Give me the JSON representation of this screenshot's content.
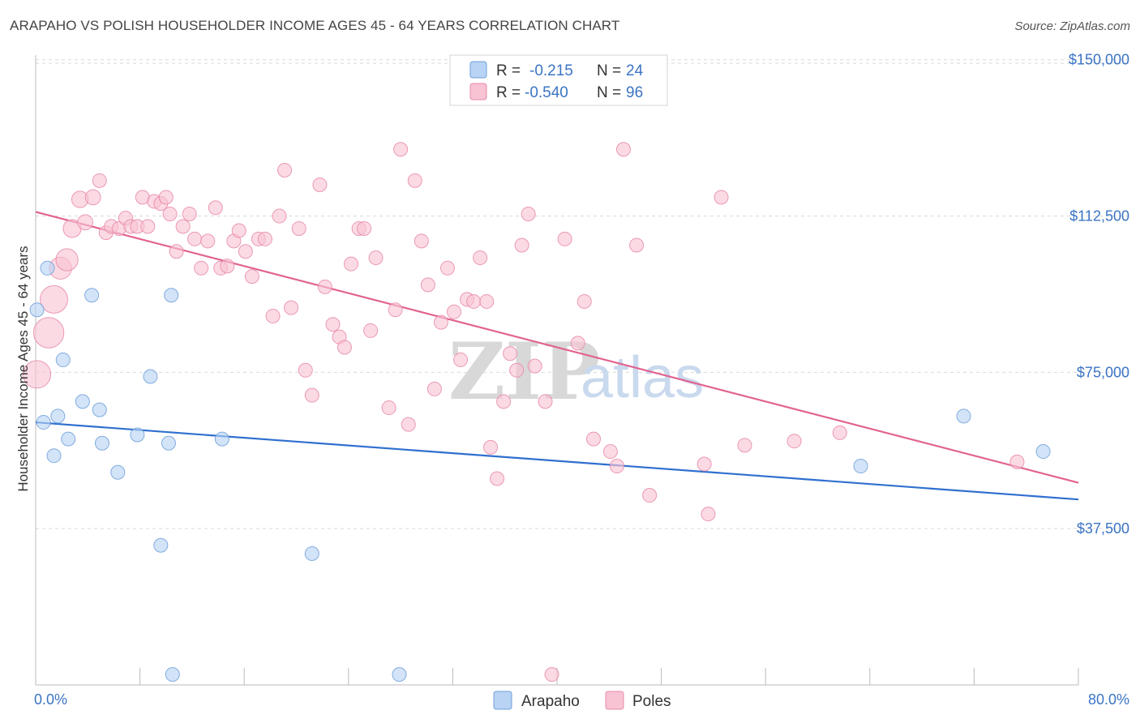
{
  "header": {
    "title": "ARAPAHO VS POLISH HOUSEHOLDER INCOME AGES 45 - 64 YEARS CORRELATION CHART",
    "source": "Source: ZipAtlas.com"
  },
  "colors": {
    "arapaho_fill": "#b8d3f3",
    "arapaho_stroke": "#6f9fdb",
    "arapaho_line": "#2f6fcf",
    "poles_fill": "#f8c3d3",
    "poles_stroke": "#e88aa8",
    "poles_line": "#e2638f",
    "axis_text": "#3b74c4",
    "grid": "#d9d9d9"
  },
  "legend": {
    "rows": [
      {
        "r_label": "R =",
        "r_value": "-0.215",
        "n_label": "N =",
        "n_value": "24"
      },
      {
        "r_label": "R =",
        "r_value": "-0.540",
        "n_label": "N =",
        "n_value": "96"
      }
    ]
  },
  "watermark": {
    "zip": "ZIP",
    "atlas": "atlas"
  },
  "chart_data": {
    "type": "scatter",
    "title": "ARAPAHO VS POLISH HOUSEHOLDER INCOME AGES 45 - 64 YEARS CORRELATION CHART",
    "xlabel": "",
    "ylabel": "Householder Income Ages 45 - 64 years",
    "xlim": [
      0,
      80
    ],
    "ylim": [
      0,
      155000
    ],
    "x_tick_labels": [
      "0.0%",
      "80.0%"
    ],
    "y_ticks": [
      37500,
      75000,
      112500,
      150000
    ],
    "y_tick_labels": [
      "$37,500",
      "$75,000",
      "$112,500",
      "$150,000"
    ],
    "grid": true,
    "series": [
      {
        "name": "Arapaho",
        "r": -0.215,
        "n": 24,
        "trend": {
          "x": [
            0,
            80
          ],
          "y": [
            63000,
            44500
          ]
        },
        "points": [
          {
            "x": 0.1,
            "y": 90000,
            "s": 1
          },
          {
            "x": 0.6,
            "y": 63000,
            "s": 1
          },
          {
            "x": 0.9,
            "y": 100000,
            "s": 1
          },
          {
            "x": 1.4,
            "y": 55000,
            "s": 1
          },
          {
            "x": 1.7,
            "y": 64500,
            "s": 1
          },
          {
            "x": 2.1,
            "y": 78000,
            "s": 1
          },
          {
            "x": 2.5,
            "y": 59000,
            "s": 1
          },
          {
            "x": 3.6,
            "y": 68000,
            "s": 1
          },
          {
            "x": 4.3,
            "y": 93500,
            "s": 1
          },
          {
            "x": 4.9,
            "y": 66000,
            "s": 1
          },
          {
            "x": 5.1,
            "y": 58000,
            "s": 1
          },
          {
            "x": 6.3,
            "y": 51000,
            "s": 1
          },
          {
            "x": 7.8,
            "y": 60000,
            "s": 1
          },
          {
            "x": 8.8,
            "y": 74000,
            "s": 1
          },
          {
            "x": 9.6,
            "y": 33500,
            "s": 1
          },
          {
            "x": 10.2,
            "y": 58000,
            "s": 1
          },
          {
            "x": 10.4,
            "y": 93500,
            "s": 1
          },
          {
            "x": 10.5,
            "y": 2500,
            "s": 1
          },
          {
            "x": 14.3,
            "y": 59000,
            "s": 1
          },
          {
            "x": 21.2,
            "y": 31500,
            "s": 1
          },
          {
            "x": 27.9,
            "y": 2500,
            "s": 1
          },
          {
            "x": 63.3,
            "y": 52500,
            "s": 1
          },
          {
            "x": 71.2,
            "y": 64500,
            "s": 1
          },
          {
            "x": 77.3,
            "y": 56000,
            "s": 1
          }
        ]
      },
      {
        "name": "Poles",
        "r": -0.54,
        "n": 96,
        "trend": {
          "x": [
            0,
            80
          ],
          "y": [
            113500,
            48500
          ]
        },
        "points": [
          {
            "x": 0.1,
            "y": 74500,
            "s": 2
          },
          {
            "x": 1.0,
            "y": 84500,
            "s": 2.2
          },
          {
            "x": 1.4,
            "y": 92500,
            "s": 2
          },
          {
            "x": 1.9,
            "y": 100000,
            "s": 1.6
          },
          {
            "x": 2.4,
            "y": 102000,
            "s": 1.6
          },
          {
            "x": 2.8,
            "y": 109500,
            "s": 1.3
          },
          {
            "x": 3.4,
            "y": 116500,
            "s": 1.2
          },
          {
            "x": 3.8,
            "y": 111000,
            "s": 1.1
          },
          {
            "x": 4.4,
            "y": 117000,
            "s": 1.1
          },
          {
            "x": 4.9,
            "y": 121000,
            "s": 1
          },
          {
            "x": 5.4,
            "y": 108500,
            "s": 1
          },
          {
            "x": 5.8,
            "y": 110000,
            "s": 1
          },
          {
            "x": 6.4,
            "y": 109500,
            "s": 1
          },
          {
            "x": 6.9,
            "y": 112000,
            "s": 1
          },
          {
            "x": 7.3,
            "y": 110000,
            "s": 1
          },
          {
            "x": 7.8,
            "y": 110000,
            "s": 1
          },
          {
            "x": 8.2,
            "y": 117000,
            "s": 1
          },
          {
            "x": 8.6,
            "y": 110000,
            "s": 1
          },
          {
            "x": 9.1,
            "y": 116000,
            "s": 1
          },
          {
            "x": 9.6,
            "y": 115500,
            "s": 1
          },
          {
            "x": 10.0,
            "y": 117000,
            "s": 1
          },
          {
            "x": 10.3,
            "y": 113000,
            "s": 1
          },
          {
            "x": 10.8,
            "y": 104000,
            "s": 1
          },
          {
            "x": 11.3,
            "y": 110000,
            "s": 1
          },
          {
            "x": 11.8,
            "y": 113000,
            "s": 1
          },
          {
            "x": 12.2,
            "y": 107000,
            "s": 1
          },
          {
            "x": 12.7,
            "y": 100000,
            "s": 1
          },
          {
            "x": 13.2,
            "y": 106500,
            "s": 1
          },
          {
            "x": 13.8,
            "y": 114500,
            "s": 1
          },
          {
            "x": 14.2,
            "y": 100000,
            "s": 1
          },
          {
            "x": 14.7,
            "y": 100500,
            "s": 1
          },
          {
            "x": 15.2,
            "y": 106500,
            "s": 1
          },
          {
            "x": 15.6,
            "y": 109000,
            "s": 1
          },
          {
            "x": 16.1,
            "y": 104000,
            "s": 1
          },
          {
            "x": 16.6,
            "y": 98000,
            "s": 1
          },
          {
            "x": 17.1,
            "y": 107000,
            "s": 1
          },
          {
            "x": 17.6,
            "y": 107000,
            "s": 1
          },
          {
            "x": 18.2,
            "y": 88500,
            "s": 1
          },
          {
            "x": 18.7,
            "y": 112500,
            "s": 1
          },
          {
            "x": 19.1,
            "y": 123500,
            "s": 1
          },
          {
            "x": 19.6,
            "y": 90500,
            "s": 1
          },
          {
            "x": 20.2,
            "y": 109500,
            "s": 1
          },
          {
            "x": 20.7,
            "y": 75500,
            "s": 1
          },
          {
            "x": 21.2,
            "y": 69500,
            "s": 1
          },
          {
            "x": 21.8,
            "y": 120000,
            "s": 1
          },
          {
            "x": 22.2,
            "y": 95500,
            "s": 1
          },
          {
            "x": 22.8,
            "y": 86500,
            "s": 1
          },
          {
            "x": 23.3,
            "y": 83500,
            "s": 1
          },
          {
            "x": 23.7,
            "y": 81000,
            "s": 1
          },
          {
            "x": 24.2,
            "y": 101000,
            "s": 1
          },
          {
            "x": 24.8,
            "y": 109500,
            "s": 1
          },
          {
            "x": 25.2,
            "y": 109500,
            "s": 1
          },
          {
            "x": 25.7,
            "y": 85000,
            "s": 1
          },
          {
            "x": 26.1,
            "y": 102500,
            "s": 1
          },
          {
            "x": 27.1,
            "y": 66500,
            "s": 1
          },
          {
            "x": 27.6,
            "y": 90000,
            "s": 1
          },
          {
            "x": 28.0,
            "y": 128500,
            "s": 1
          },
          {
            "x": 28.6,
            "y": 62500,
            "s": 1
          },
          {
            "x": 29.1,
            "y": 121000,
            "s": 1
          },
          {
            "x": 29.6,
            "y": 106500,
            "s": 1
          },
          {
            "x": 30.1,
            "y": 96000,
            "s": 1
          },
          {
            "x": 30.6,
            "y": 71000,
            "s": 1
          },
          {
            "x": 31.1,
            "y": 87000,
            "s": 1
          },
          {
            "x": 31.6,
            "y": 100000,
            "s": 1
          },
          {
            "x": 32.1,
            "y": 89500,
            "s": 1
          },
          {
            "x": 32.6,
            "y": 78000,
            "s": 1
          },
          {
            "x": 33.1,
            "y": 92500,
            "s": 1
          },
          {
            "x": 33.6,
            "y": 92000,
            "s": 1
          },
          {
            "x": 34.1,
            "y": 102500,
            "s": 1
          },
          {
            "x": 34.6,
            "y": 92000,
            "s": 1
          },
          {
            "x": 34.9,
            "y": 57000,
            "s": 1
          },
          {
            "x": 35.4,
            "y": 49500,
            "s": 1
          },
          {
            "x": 35.9,
            "y": 68000,
            "s": 1
          },
          {
            "x": 36.4,
            "y": 79500,
            "s": 1
          },
          {
            "x": 36.9,
            "y": 75500,
            "s": 1
          },
          {
            "x": 37.3,
            "y": 105500,
            "s": 1
          },
          {
            "x": 37.8,
            "y": 113000,
            "s": 1
          },
          {
            "x": 38.3,
            "y": 76500,
            "s": 1
          },
          {
            "x": 39.1,
            "y": 68000,
            "s": 1
          },
          {
            "x": 39.6,
            "y": 2500,
            "s": 1
          },
          {
            "x": 40.6,
            "y": 107000,
            "s": 1
          },
          {
            "x": 41.6,
            "y": 82000,
            "s": 1
          },
          {
            "x": 42.1,
            "y": 92000,
            "s": 1
          },
          {
            "x": 42.8,
            "y": 59000,
            "s": 1
          },
          {
            "x": 44.1,
            "y": 56000,
            "s": 1
          },
          {
            "x": 44.6,
            "y": 52500,
            "s": 1
          },
          {
            "x": 45.1,
            "y": 128500,
            "s": 1
          },
          {
            "x": 46.1,
            "y": 105500,
            "s": 1
          },
          {
            "x": 47.1,
            "y": 45500,
            "s": 1
          },
          {
            "x": 51.3,
            "y": 53000,
            "s": 1
          },
          {
            "x": 51.6,
            "y": 41000,
            "s": 1
          },
          {
            "x": 52.6,
            "y": 117000,
            "s": 1
          },
          {
            "x": 54.4,
            "y": 57500,
            "s": 1
          },
          {
            "x": 58.2,
            "y": 58500,
            "s": 1
          },
          {
            "x": 61.7,
            "y": 60500,
            "s": 1
          },
          {
            "x": 75.3,
            "y": 53500,
            "s": 1
          }
        ]
      }
    ]
  },
  "bottom_legend": [
    {
      "label": "Arapaho"
    },
    {
      "label": "Poles"
    }
  ]
}
